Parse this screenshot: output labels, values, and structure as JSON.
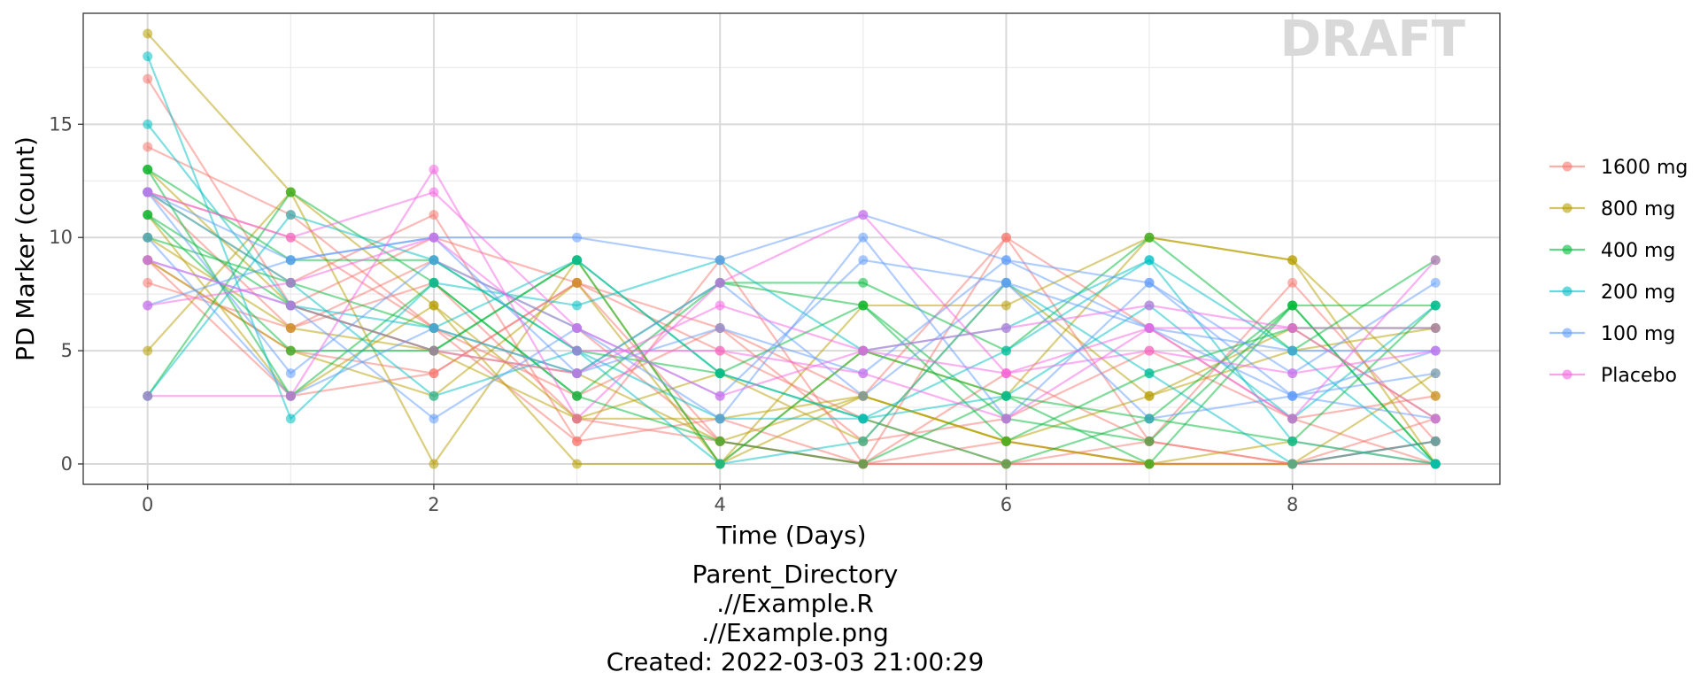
{
  "chart_data": {
    "type": "line",
    "xlabel": "Time (Days)",
    "ylabel": "PD Marker (count)",
    "xlim": [
      -0.45,
      9.45
    ],
    "ylim": [
      -0.9,
      19.9
    ],
    "x_ticks": [
      0,
      2,
      4,
      6,
      8
    ],
    "y_ticks": [
      0,
      5,
      10,
      15
    ],
    "grid": true,
    "legend_position": "right",
    "watermark": "DRAFT",
    "caption": [
      "Parent_Directory",
      ".//Example.R",
      ".//Example.png",
      "Created: 2022-03-03 21:00:29"
    ],
    "x": [
      0,
      1,
      2,
      3,
      4,
      5,
      6,
      7,
      8,
      9
    ],
    "series": [
      {
        "name": "1600 mg",
        "color": "#F8766D",
        "subjects": [
          [
            12,
            8,
            11,
            1,
            9,
            0,
            10,
            1,
            8,
            1
          ],
          [
            17,
            7,
            10,
            8,
            5,
            2,
            0,
            0,
            0,
            1
          ],
          [
            9,
            5,
            4,
            8,
            6,
            3,
            10,
            6,
            2,
            0
          ],
          [
            12,
            10,
            6,
            1,
            2,
            0,
            0,
            1,
            0,
            2
          ],
          [
            8,
            6,
            9,
            6,
            1,
            0,
            4,
            1,
            0,
            1
          ],
          [
            14,
            11,
            6,
            3,
            6,
            1,
            2,
            5,
            2,
            3
          ],
          [
            9,
            3,
            4,
            8,
            1,
            0,
            0,
            0,
            0,
            1
          ],
          [
            12,
            6,
            8,
            2,
            1,
            0,
            1,
            0,
            0,
            0
          ]
        ]
      },
      {
        "name": "800 mg",
        "color": "#B79F00",
        "subjects": [
          [
            19,
            12,
            0,
            9,
            0,
            7,
            7,
            10,
            9,
            3
          ],
          [
            5,
            12,
            7,
            0,
            0,
            3,
            1,
            0,
            1,
            0
          ],
          [
            13,
            7,
            5,
            2,
            4,
            1,
            8,
            3,
            6,
            2
          ],
          [
            11,
            3,
            7,
            2,
            2,
            3,
            1,
            0,
            0,
            4
          ],
          [
            9,
            5,
            3,
            8,
            0,
            5,
            3,
            10,
            9,
            0
          ],
          [
            10,
            6,
            5,
            4,
            1,
            3,
            1,
            3,
            5,
            6
          ]
        ]
      },
      {
        "name": "400 mg",
        "color": "#00BA38",
        "subjects": [
          [
            3,
            12,
            8,
            3,
            8,
            8,
            5,
            10,
            5,
            9
          ],
          [
            11,
            7,
            5,
            9,
            0,
            5,
            3,
            0,
            7,
            0
          ],
          [
            13,
            9,
            9,
            5,
            4,
            2,
            0,
            2,
            7,
            7
          ],
          [
            10,
            8,
            6,
            4,
            8,
            7,
            2,
            1,
            7,
            0
          ],
          [
            11,
            5,
            5,
            9,
            4,
            7,
            1,
            4,
            6,
            6
          ],
          [
            13,
            3,
            8,
            3,
            1,
            0,
            3,
            2,
            1,
            7
          ]
        ]
      },
      {
        "name": "200 mg",
        "color": "#00BFC4",
        "subjects": [
          [
            18,
            2,
            8,
            7,
            9,
            5,
            6,
            9,
            5,
            0
          ],
          [
            15,
            7,
            6,
            9,
            4,
            2,
            3,
            7,
            2,
            7
          ],
          [
            3,
            11,
            9,
            5,
            0,
            1,
            8,
            4,
            0,
            1
          ],
          [
            12,
            8,
            3,
            5,
            2,
            2,
            5,
            9,
            1,
            0
          ]
        ]
      },
      {
        "name": "100 mg",
        "color": "#619CFF",
        "subjects": [
          [
            7,
            9,
            10,
            10,
            9,
            11,
            9,
            8,
            4,
            8
          ],
          [
            12,
            4,
            9,
            6,
            2,
            10,
            2,
            8,
            3,
            5
          ],
          [
            9,
            7,
            2,
            6,
            3,
            9,
            8,
            6,
            3,
            2
          ],
          [
            12,
            9,
            10,
            4,
            6,
            4,
            9,
            6,
            5,
            5
          ],
          [
            10,
            3,
            6,
            4,
            8,
            3,
            8,
            2,
            3,
            4
          ]
        ]
      },
      {
        "name": "Placebo",
        "color": "#F564E3",
        "subjects": [
          [
            3,
            3,
            13,
            2,
            8,
            11,
            4,
            6,
            2,
            9
          ],
          [
            12,
            10,
            12,
            6,
            3,
            5,
            6,
            7,
            6,
            6
          ],
          [
            7,
            8,
            10,
            5,
            5,
            4,
            2,
            6,
            6,
            2
          ],
          [
            9,
            7,
            5,
            4,
            7,
            5,
            4,
            5,
            4,
            5
          ]
        ]
      }
    ]
  }
}
